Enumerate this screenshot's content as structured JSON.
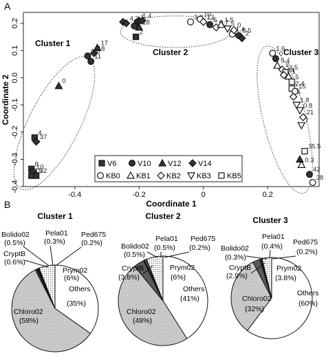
{
  "panel_labels": {
    "a": "A",
    "b": "B"
  },
  "chart_data": [
    {
      "type": "scatter",
      "xlabel": "Coordinate 1",
      "ylabel": "Coordinate 2",
      "xlim": [
        -0.56,
        0.36
      ],
      "ylim": [
        -0.4,
        0.24
      ],
      "xticks": [
        -0.4,
        -0.2,
        0.0,
        0.2
      ],
      "xtick_labels": [
        "-0.4",
        "-0.2",
        "0",
        "0.2"
      ],
      "yticks": [
        -0.4,
        -0.3,
        -0.2,
        -0.1,
        0.0,
        0.1,
        0.2
      ],
      "ytick_labels": [
        "-0.4",
        "-0.3",
        "-0.2",
        "-0.1",
        "0.0",
        "0.1",
        "0.2"
      ],
      "grid": false,
      "legend_position": "bottom-right",
      "legend": [
        {
          "key": "V6",
          "label": "V6",
          "shape": "square",
          "filled": true
        },
        {
          "key": "V10",
          "label": "V10",
          "shape": "circle",
          "filled": true
        },
        {
          "key": "V12",
          "label": "V12",
          "shape": "triangle",
          "filled": true
        },
        {
          "key": "V14",
          "label": "V14",
          "shape": "diamond",
          "filled": true
        },
        {
          "key": "KB0",
          "label": "KB0",
          "shape": "circle",
          "filled": false
        },
        {
          "key": "KB1",
          "label": "KB1",
          "shape": "triangle",
          "filled": false
        },
        {
          "key": "KB2",
          "label": "KB2",
          "shape": "diamond",
          "filled": false
        },
        {
          "key": "KB3",
          "label": "KB3",
          "shape": "triangle-down",
          "filled": false
        },
        {
          "key": "KB5",
          "label": "KB5",
          "shape": "square",
          "filled": false
        }
      ],
      "clusters": [
        {
          "label": "Cluster 1"
        },
        {
          "label": "Cluster 2"
        },
        {
          "label": "Cluster 3"
        }
      ],
      "points": [
        {
          "series": "V12",
          "x": -0.33,
          "y": 0.11,
          "label": "17"
        },
        {
          "series": "V14",
          "x": -0.34,
          "y": 0.09,
          "label": "18"
        },
        {
          "series": "V10",
          "x": -0.36,
          "y": 0.08,
          "label": "9.8"
        },
        {
          "series": "V10",
          "x": -0.35,
          "y": 0.06,
          "label": "11"
        },
        {
          "series": "V12",
          "x": -0.45,
          "y": -0.03,
          "label": "0"
        },
        {
          "series": "V6",
          "x": -0.525,
          "y": -0.22,
          "label": "4"
        },
        {
          "series": "V14",
          "x": -0.52,
          "y": -0.235,
          "label": "37"
        },
        {
          "series": "V6",
          "x": -0.535,
          "y": -0.335,
          "label": "8"
        },
        {
          "series": "V10",
          "x": -0.53,
          "y": -0.345,
          "label": "10"
        },
        {
          "series": "V6",
          "x": -0.535,
          "y": -0.36,
          "label": "15"
        },
        {
          "series": "V6",
          "x": -0.52,
          "y": -0.36,
          "label": "32"
        },
        {
          "series": "V14",
          "x": -0.25,
          "y": 0.205,
          "label": ""
        },
        {
          "series": "V14",
          "x": -0.24,
          "y": 0.2,
          "label": "4.3"
        },
        {
          "series": "V10",
          "x": -0.205,
          "y": 0.205,
          "label": "1"
        },
        {
          "series": "V12",
          "x": -0.2,
          "y": 0.21,
          "label": "1.4"
        },
        {
          "series": "V14",
          "x": -0.19,
          "y": 0.21,
          "label": ""
        },
        {
          "series": "V12",
          "x": -0.2,
          "y": 0.185,
          "label": "18"
        },
        {
          "series": "V6",
          "x": -0.21,
          "y": 0.15,
          "label": "2"
        },
        {
          "series": "V10",
          "x": -0.215,
          "y": 0.19,
          "label": "6"
        },
        {
          "series": "KB0",
          "x": -0.04,
          "y": 0.205,
          "label": "3.8"
        },
        {
          "series": "KB0",
          "x": -0.01,
          "y": 0.215,
          "label": "10"
        },
        {
          "series": "KB2",
          "x": 0.0,
          "y": 0.205,
          "label": "13"
        },
        {
          "series": "V10",
          "x": 0.02,
          "y": 0.195,
          "label": "5"
        },
        {
          "series": "KB2",
          "x": 0.04,
          "y": 0.185,
          "label": "9.7"
        },
        {
          "series": "KB1",
          "x": 0.055,
          "y": 0.195,
          "label": "1.5"
        },
        {
          "series": "KB3",
          "x": 0.075,
          "y": 0.18,
          "label": "5"
        },
        {
          "series": "KB0",
          "x": 0.09,
          "y": 0.16,
          "label": "1.4"
        },
        {
          "series": "V10",
          "x": 0.11,
          "y": 0.155,
          "label": "8.5"
        },
        {
          "series": "KB2",
          "x": 0.095,
          "y": 0.175,
          "label": "0"
        },
        {
          "series": "V14",
          "x": 0.12,
          "y": 0.145,
          "label": "2"
        },
        {
          "series": "KB0",
          "x": 0.215,
          "y": 0.09,
          "label": "1.6"
        },
        {
          "series": "V10",
          "x": 0.225,
          "y": 0.07,
          "label": "0"
        },
        {
          "series": "KB1",
          "x": 0.23,
          "y": 0.045,
          "label": "5.4"
        },
        {
          "series": "KB2",
          "x": 0.245,
          "y": 0.03,
          "label": "2"
        },
        {
          "series": "KB5",
          "x": 0.255,
          "y": 0.02,
          "label": "3.5"
        },
        {
          "series": "KB2",
          "x": 0.25,
          "y": 0.01,
          "label": "34"
        },
        {
          "series": "KB1",
          "x": 0.265,
          "y": 0.005,
          "label": "1"
        },
        {
          "series": "KB5",
          "x": 0.275,
          "y": -0.015,
          "label": "5"
        },
        {
          "series": "KB5",
          "x": 0.275,
          "y": -0.04,
          "label": "2.4"
        },
        {
          "series": "KB0",
          "x": 0.285,
          "y": -0.05,
          "label": "15"
        },
        {
          "series": "KB2",
          "x": 0.28,
          "y": -0.07,
          "label": "5"
        },
        {
          "series": "KB3",
          "x": 0.29,
          "y": -0.1,
          "label": "1.8"
        },
        {
          "series": "KB3",
          "x": 0.3,
          "y": -0.12,
          "label": "0.8"
        },
        {
          "series": "KB2",
          "x": 0.31,
          "y": -0.145,
          "label": "21"
        },
        {
          "series": "KB3",
          "x": 0.305,
          "y": -0.175,
          "label": "7"
        },
        {
          "series": "KB5",
          "x": 0.315,
          "y": -0.27,
          "label": "35.5"
        },
        {
          "series": "V12",
          "x": 0.3,
          "y": -0.3,
          "label": ""
        },
        {
          "series": "KB1",
          "x": 0.305,
          "y": -0.32,
          "label": "0.3"
        },
        {
          "series": "V10",
          "x": 0.33,
          "y": -0.355,
          "label": "42"
        },
        {
          "series": "KB0",
          "x": 0.34,
          "y": -0.385,
          "label": "38"
        }
      ]
    },
    {
      "type": "pie",
      "title": "Cluster 1",
      "slices": [
        {
          "label": "Others",
          "value": 35,
          "display": "(35%)",
          "color": "#ffffff"
        },
        {
          "label": "Chloro02",
          "value": 58,
          "display": "(58%)",
          "color": "#c9c9c9"
        },
        {
          "label": "CryptB",
          "value": 0.6,
          "display": "(0.6%)",
          "color": "#5a5a5a"
        },
        {
          "label": "Bolido02",
          "value": 0.5,
          "display": "(0.5%)",
          "color": "#1c1c1c"
        },
        {
          "label": "Pela01",
          "value": 0.3,
          "display": "(0.3%)",
          "color": "#9a9a9a"
        },
        {
          "label": "Ped675",
          "value": 0.2,
          "display": "(0.2%)",
          "color": "#444444"
        },
        {
          "label": "Prym02",
          "value": 6,
          "display": "(6%)",
          "color": "#e4e4e4"
        }
      ]
    },
    {
      "type": "pie",
      "title": "Cluster 2",
      "slices": [
        {
          "label": "Others",
          "value": 41,
          "display": "(41%)",
          "color": "#ffffff"
        },
        {
          "label": "Chloro02",
          "value": 48,
          "display": "(48%)",
          "color": "#c9c9c9"
        },
        {
          "label": "CryptB",
          "value": 3.8,
          "display": "(3.8%)",
          "color": "#5a5a5a"
        },
        {
          "label": "Bolido02",
          "value": 0.5,
          "display": "(0.5%)",
          "color": "#1c1c1c"
        },
        {
          "label": "Pela01",
          "value": 0.5,
          "display": "(0.5%)",
          "color": "#9a9a9a"
        },
        {
          "label": "Ped675",
          "value": 0.2,
          "display": "(0.2%)",
          "color": "#444444"
        },
        {
          "label": "Prym02",
          "value": 6,
          "display": "(6%)",
          "color": "#e4e4e4"
        }
      ]
    },
    {
      "type": "pie",
      "title": "Cluster 3",
      "slices": [
        {
          "label": "Others",
          "value": 60,
          "display": "(60%)",
          "color": "#ffffff"
        },
        {
          "label": "Chloro02",
          "value": 32,
          "display": "(32%)",
          "color": "#c9c9c9"
        },
        {
          "label": "CryptB",
          "value": 2.9,
          "display": "(2.9%)",
          "color": "#5a5a5a"
        },
        {
          "label": "Bolido02",
          "value": 0.3,
          "display": "(0.3%)",
          "color": "#1c1c1c"
        },
        {
          "label": "Pela01",
          "value": 0.4,
          "display": "(0.4%)",
          "color": "#9a9a9a"
        },
        {
          "label": "Ped675",
          "value": 0.2,
          "display": "(0.2%)",
          "color": "#444444"
        },
        {
          "label": "Prym02",
          "value": 3.8,
          "display": "(3.8%)",
          "color": "#e4e4e4"
        }
      ]
    }
  ]
}
